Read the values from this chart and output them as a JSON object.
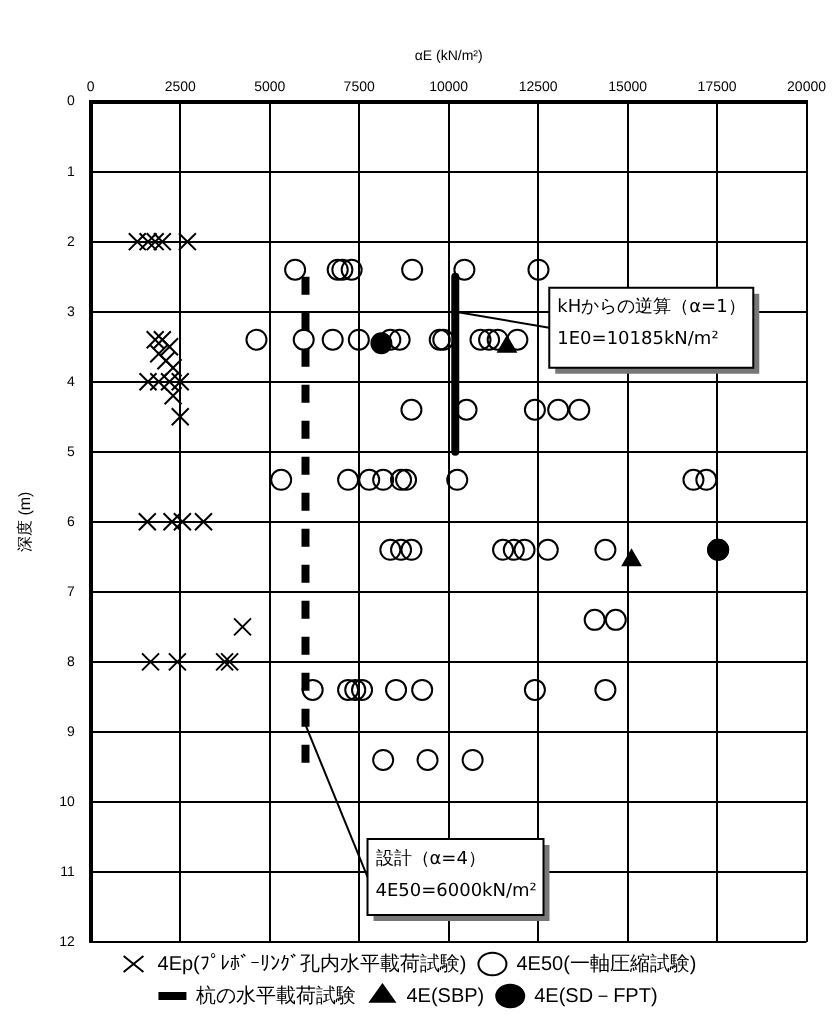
{
  "chart_data": {
    "type": "scatter",
    "xlabel": "αE (kN/m²)",
    "ylabel": "深度 (m)",
    "xlim": [
      0,
      20000
    ],
    "xticks": [
      0,
      2500,
      5000,
      7500,
      10000,
      12500,
      15000,
      17500,
      20000
    ],
    "ylim": [
      12,
      0
    ],
    "yticks": [
      0,
      1,
      2,
      3,
      4,
      5,
      6,
      7,
      8,
      9,
      10,
      11,
      12
    ],
    "grid": true,
    "legend": "bottom",
    "series": [
      {
        "name": "4Ep(ﾌﾟﾚﾎﾞｰﾘﾝｸﾞ孔内水平載荷試験)",
        "marker": "cross",
        "color": "#000000",
        "x": [
          1300,
          1600,
          1800,
          2000,
          2700,
          1800,
          2000,
          2200,
          1900,
          2100,
          2300,
          1600,
          1900,
          2200,
          2500,
          2300,
          2500,
          1580,
          2270,
          2560,
          3150,
          4240,
          1670,
          2420,
          3740,
          3880
        ],
        "values": [
          2,
          2,
          2,
          2,
          2,
          3.4,
          3.4,
          3.5,
          3.6,
          3.7,
          3.8,
          4,
          4,
          4,
          4,
          4.2,
          4.5,
          6,
          6,
          6,
          6,
          7.5,
          8,
          8,
          8,
          8
        ]
      },
      {
        "name": "4E50(一軸圧縮試験)",
        "marker": "circle",
        "color": "#000000",
        "x": [
          5710,
          6900,
          7030,
          7290,
          8980,
          10440,
          12510,
          4630,
          5950,
          6760,
          7490,
          8370,
          8630,
          9750,
          9850,
          10890,
          11130,
          11370,
          11920,
          8960,
          10500,
          12410,
          13060,
          13650,
          5320,
          7190,
          7780,
          8170,
          8670,
          8810,
          10240,
          16840,
          17200,
          8370,
          8670,
          8960,
          11520,
          11820,
          12120,
          12770,
          14380,
          17530,
          14080,
          14670,
          6200,
          7190,
          7390,
          7580,
          8530,
          9260,
          12410,
          14380,
          8170,
          9410,
          10670
        ],
        "values": [
          2.4,
          2.4,
          2.4,
          2.4,
          2.4,
          2.4,
          2.4,
          3.4,
          3.4,
          3.4,
          3.4,
          3.4,
          3.4,
          3.4,
          3.4,
          3.4,
          3.4,
          3.4,
          3.4,
          4.4,
          4.4,
          4.4,
          4.4,
          4.4,
          5.4,
          5.4,
          5.4,
          5.4,
          5.4,
          5.4,
          5.4,
          5.4,
          5.4,
          6.4,
          6.4,
          6.4,
          6.4,
          6.4,
          6.4,
          6.4,
          6.4,
          6.4,
          7.4,
          7.4,
          8.4,
          8.4,
          8.4,
          8.4,
          8.4,
          8.4,
          8.4,
          8.4,
          9.4,
          9.4,
          9.4
        ]
      },
      {
        "name": "杭の水平載荷試験",
        "type": "line",
        "color": "#000000",
        "line_style": "solid",
        "x": [
          10185,
          10185
        ],
        "values": [
          2.5,
          5
        ]
      },
      {
        "name": "4E(SBP)",
        "marker": "triangle",
        "color": "#000000",
        "x": [
          11630,
          15110
        ],
        "values": [
          3.5,
          6.55
        ]
      },
      {
        "name": "4E(SD－FPT)",
        "marker": "circle",
        "color": "#000000",
        "x": [
          8120,
          17530
        ],
        "values": [
          3.45,
          6.4
        ]
      },
      {
        "type": "line",
        "color": "#000000",
        "line_style": "dashed",
        "x": [
          6000,
          6000
        ],
        "values": [
          2.5,
          9.5
        ]
      }
    ],
    "annotations": [
      {
        "text": "kHからの逆算（α=1）\n1E0=10185kN/m²",
        "x": 10185,
        "y": 3
      },
      {
        "text": "設計（α=4）\n4E50=6000kN/m²",
        "x": 6000,
        "y": 8.9
      }
    ]
  }
}
